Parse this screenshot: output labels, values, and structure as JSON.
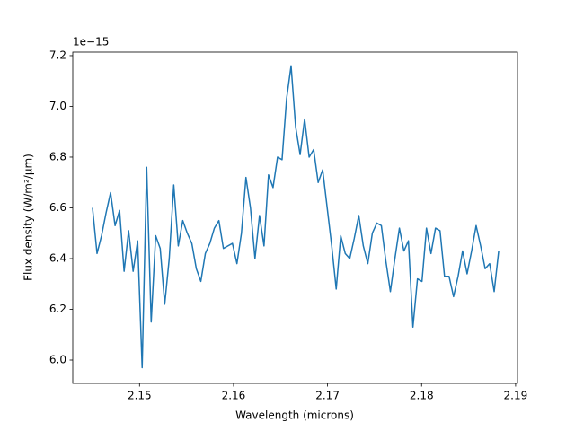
{
  "chart_data": {
    "type": "line",
    "xlabel": "Wavelength (microns)",
    "ylabel": "Flux density (W/m²/μm)",
    "offset_label": "1e−15",
    "x": [
      2.145,
      2.14548,
      2.14596,
      2.14644,
      2.14692,
      2.1474,
      2.14788,
      2.14836,
      2.14884,
      2.14932,
      2.1498,
      2.15028,
      2.15076,
      2.15124,
      2.15172,
      2.1522,
      2.15268,
      2.15316,
      2.15364,
      2.15412,
      2.1546,
      2.15508,
      2.15556,
      2.15604,
      2.15652,
      2.157,
      2.15748,
      2.15796,
      2.15844,
      2.15892,
      2.1594,
      2.15988,
      2.16036,
      2.16084,
      2.16132,
      2.1618,
      2.16228,
      2.16276,
      2.16324,
      2.16372,
      2.1642,
      2.16468,
      2.16516,
      2.16564,
      2.16612,
      2.1666,
      2.16708,
      2.16756,
      2.16804,
      2.16852,
      2.169,
      2.16948,
      2.16996,
      2.17044,
      2.17092,
      2.1714,
      2.17188,
      2.17236,
      2.17284,
      2.17332,
      2.1738,
      2.17428,
      2.17476,
      2.17524,
      2.17572,
      2.1762,
      2.17668,
      2.17716,
      2.17764,
      2.17812,
      2.1786,
      2.17908,
      2.17956,
      2.18004,
      2.18052,
      2.181,
      2.18148,
      2.18196,
      2.18244,
      2.18292,
      2.1834,
      2.18388,
      2.18436,
      2.18484,
      2.18532,
      2.1858,
      2.18628,
      2.18676,
      2.18724,
      2.18772,
      2.1882
    ],
    "series": [
      {
        "color": "#1f77b4",
        "values": [
          6.6,
          6.42,
          6.49,
          6.58,
          6.66,
          6.53,
          6.59,
          6.35,
          6.51,
          6.35,
          6.47,
          5.97,
          6.76,
          6.15,
          6.49,
          6.44,
          6.22,
          6.4,
          6.69,
          6.45,
          6.55,
          6.5,
          6.46,
          6.36,
          6.31,
          6.42,
          6.46,
          6.52,
          6.55,
          6.44,
          6.45,
          6.46,
          6.38,
          6.5,
          6.72,
          6.6,
          6.4,
          6.57,
          6.45,
          6.73,
          6.68,
          6.8,
          6.79,
          7.03,
          7.16,
          6.92,
          6.81,
          6.95,
          6.8,
          6.83,
          6.7,
          6.75,
          6.6,
          6.45,
          6.28,
          6.49,
          6.42,
          6.4,
          6.48,
          6.57,
          6.45,
          6.38,
          6.5,
          6.54,
          6.53,
          6.39,
          6.27,
          6.4,
          6.52,
          6.43,
          6.47,
          6.13,
          6.32,
          6.31,
          6.52,
          6.42,
          6.52,
          6.51,
          6.33,
          6.33,
          6.25,
          6.33,
          6.43,
          6.34,
          6.43,
          6.53,
          6.45,
          6.36,
          6.38,
          6.27,
          6.43
        ]
      }
    ],
    "xlim": [
      2.1429,
      2.1902
    ],
    "xticks": [
      2.15,
      2.16,
      2.17,
      2.18,
      2.19
    ],
    "ylim": [
      5.908,
      7.214
    ],
    "yticks": [
      {
        "value": 6.0,
        "label": "6.0"
      },
      {
        "value": 6.2,
        "label": "6.2"
      },
      {
        "value": 6.4,
        "label": "6.4"
      },
      {
        "value": 6.6,
        "label": "6.6"
      },
      {
        "value": 6.8,
        "label": "6.8"
      },
      {
        "value": 7.0,
        "label": "7.0"
      },
      {
        "value": 7.2,
        "label": "7.2"
      }
    ],
    "grid": false
  }
}
